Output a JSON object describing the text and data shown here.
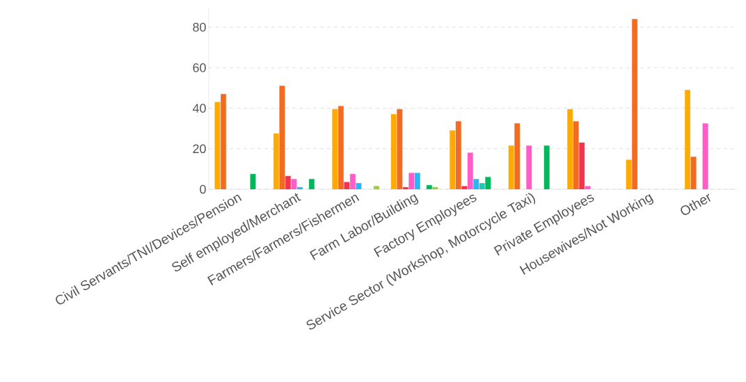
{
  "chart_data": {
    "type": "bar",
    "categories": [
      "Civil Servants/TNI/Devices/Pension",
      "Self employed/Merchant",
      "Farmers/Farmers/Fishermen",
      "Farm Labor/Building",
      "Factory Employees",
      "Service Sector (Workshop, Motorcycle Taxi)",
      "Private Employees",
      "Housewives/Not Working",
      "Other"
    ],
    "series": [
      {
        "color": "#ffaa00",
        "values": [
          43,
          27.5,
          39.5,
          37,
          29,
          21.5,
          39.5,
          14.5,
          49
        ]
      },
      {
        "color": "#f26b21",
        "values": [
          47,
          51,
          41,
          39.5,
          33.5,
          32.5,
          33.5,
          84,
          16
        ]
      },
      {
        "color": "#f5334f",
        "values": [
          null,
          6.5,
          3.5,
          1,
          1.5,
          null,
          23,
          null,
          null
        ]
      },
      {
        "color": "#ff5cc8",
        "values": [
          null,
          5,
          7.5,
          8,
          18,
          21.5,
          1.5,
          null,
          32.5
        ]
      },
      {
        "color": "#2ab5f5",
        "values": [
          null,
          1,
          3,
          8,
          5,
          null,
          null,
          null,
          null
        ]
      },
      {
        "color": "#1dc9b7",
        "values": [
          null,
          null,
          null,
          null,
          3,
          null,
          null,
          null,
          null
        ]
      },
      {
        "color": "#00b85c",
        "values": [
          7.5,
          5,
          null,
          2,
          6,
          21.5,
          null,
          null,
          null
        ]
      },
      {
        "color": "#9acd32",
        "values": [
          null,
          null,
          1.5,
          1,
          null,
          null,
          null,
          null,
          null
        ]
      }
    ],
    "ylim": [
      0,
      90
    ],
    "yticks": [
      0,
      20,
      40,
      60,
      80
    ],
    "grid": "y"
  }
}
